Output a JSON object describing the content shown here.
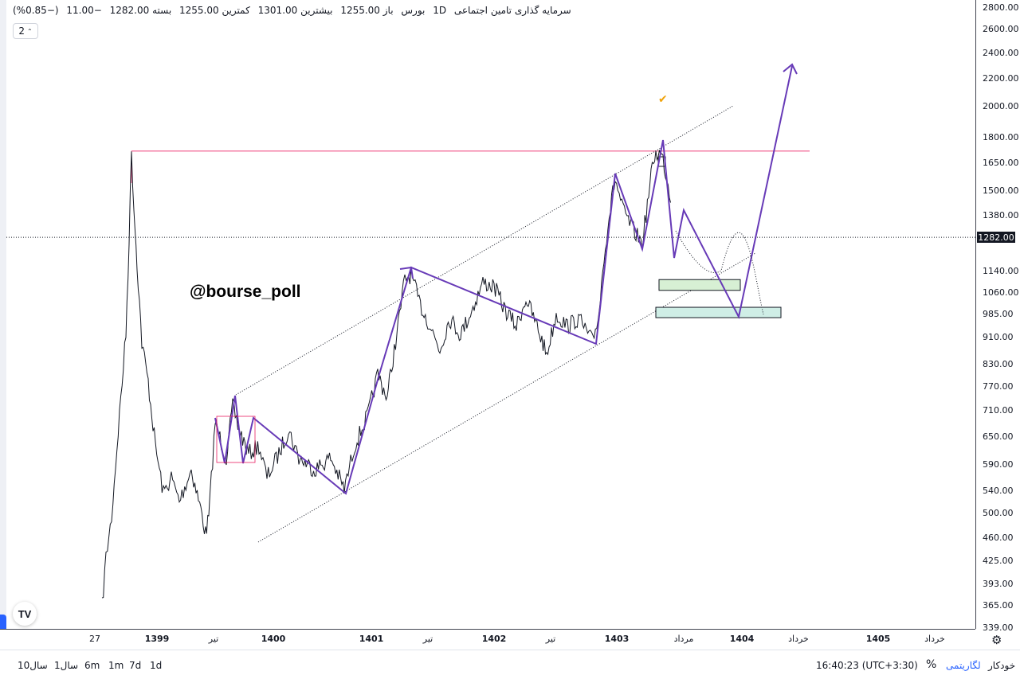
{
  "header": {
    "title": "سرمایه گذاری تامین اجتماعی",
    "interval": "1D",
    "exchange": "بورس",
    "open": "باز 1255.00",
    "high": "بیشترین 1301.00",
    "low": "کمترین 1255.00",
    "close": "بسته 1282.00",
    "change": "−11.00",
    "change_pct": "(−0.85%)",
    "interval_box": "2"
  },
  "watermark": "@bourse_poll",
  "current_price_label": "1282.00",
  "price_ticks": [
    "2800.00",
    "2600.00",
    "2400.00",
    "2200.00",
    "2000.00",
    "1800.00",
    "1650.00",
    "1500.00",
    "1380.00",
    "1140.00",
    "1060.00",
    "985.00",
    "910.00",
    "830.00",
    "770.00",
    "710.00",
    "650.00",
    "590.00",
    "540.00",
    "500.00",
    "460.00",
    "425.00",
    "393.00",
    "365.00",
    "339.00"
  ],
  "time_ticks": [
    "27",
    "1399",
    "تیر",
    "1400",
    "1401",
    "تیر",
    "1402",
    "تیر",
    "1403",
    "مرداد",
    "1404",
    "خرداد",
    "1405",
    "خرداد"
  ],
  "bottom_bar": {
    "ranges": [
      "10سال",
      "1سال",
      "6m",
      "1m",
      "7d",
      "1d"
    ],
    "clock": "16:40:23 (UTC+3:30)",
    "percent": "%",
    "log_label": "لگاریتمی",
    "auto_label": "خودکار"
  },
  "chart_data": {
    "type": "line",
    "title": "سرمایه گذاری تامین اجتماعی",
    "y_scale": "log",
    "ylim": [
      339,
      2800
    ],
    "x_markers": [
      "1399",
      "1400",
      "1401",
      "1402",
      "1403",
      "1404",
      "1405"
    ],
    "series": [
      {
        "x": [
          "1398",
          "1398",
          "1398",
          "1399",
          "1399",
          "1399",
          "1399",
          "1399",
          "1400",
          "1400",
          "1400",
          "1400",
          "1401",
          "1401",
          "1401",
          "1401",
          "1401",
          "1402",
          "1402",
          "1402",
          "1402",
          "1402",
          "1403",
          "1403",
          "1403",
          "1403",
          "1403",
          "1403",
          "1403"
        ],
        "values": [
          360,
          500,
          1720,
          900,
          560,
          470,
          700,
          640,
          610,
          570,
          540,
          780,
          1140,
          930,
          1000,
          1080,
          900,
          1030,
          870,
          1000,
          900,
          1330,
          1560,
          1280,
          1420,
          1240,
          1720,
          1580,
          1500
        ]
      }
    ],
    "resistance_level": 1720,
    "current_price": 1282,
    "support_zones": [
      {
        "low": 1070,
        "high": 1110
      },
      {
        "low": 975,
        "high": 1010
      }
    ],
    "projection": [
      1720,
      1210,
      1420,
      980,
      2300
    ]
  }
}
